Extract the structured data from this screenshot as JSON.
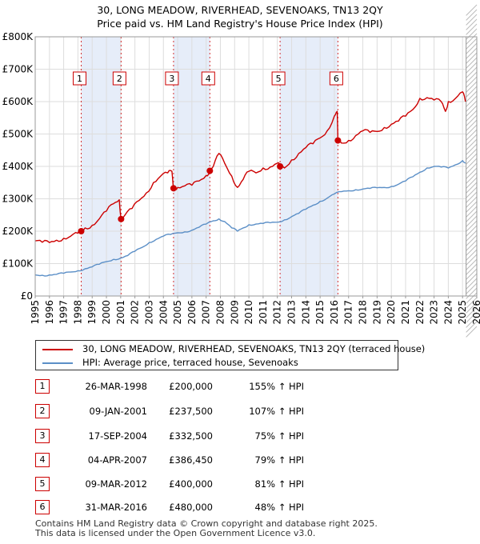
{
  "title_line1": "30, LONG MEADOW, RIVERHEAD, SEVENOAKS, TN13 2QY",
  "title_line2": "Price paid vs. HM Land Registry's House Price Index (HPI)",
  "colors": {
    "property": "#cc0000",
    "hpi": "#5b8fc7",
    "band": "#e6edf9",
    "marker_border": "#cc0000"
  },
  "legend": {
    "property_label": "30, LONG MEADOW, RIVERHEAD, SEVENOAKS, TN13 2QY (terraced house)",
    "hpi_label": "HPI: Average price, terraced house, Sevenoaks"
  },
  "sales": [
    {
      "num": "1",
      "date": "26-MAR-1998",
      "price": "£200,000",
      "hpi": "155% ↑ HPI"
    },
    {
      "num": "2",
      "date": "09-JAN-2001",
      "price": "£237,500",
      "hpi": "107% ↑ HPI"
    },
    {
      "num": "3",
      "date": "17-SEP-2004",
      "price": "£332,500",
      "hpi": "75% ↑ HPI"
    },
    {
      "num": "4",
      "date": "04-APR-2007",
      "price": "£386,450",
      "hpi": "79% ↑ HPI"
    },
    {
      "num": "5",
      "date": "09-MAR-2012",
      "price": "£400,000",
      "hpi": "81% ↑ HPI"
    },
    {
      "num": "6",
      "date": "31-MAR-2016",
      "price": "£480,000",
      "hpi": "48% ↑ HPI"
    }
  ],
  "footer_line1": "Contains HM Land Registry data © Crown copyright and database right 2025.",
  "footer_line2": "This data is licensed under the Open Government Licence v3.0.",
  "chart_data": {
    "type": "line",
    "title": "30, LONG MEADOW, RIVERHEAD, SEVENOAKS, TN13 2QY — Price paid vs. HM Land Registry's House Price Index (HPI)",
    "xlabel": "",
    "ylabel": "",
    "xlim": [
      1995,
      2026
    ],
    "ylim": [
      0,
      800000
    ],
    "x_ticks": [
      1995,
      1996,
      1997,
      1998,
      1999,
      2000,
      2001,
      2002,
      2003,
      2004,
      2005,
      2006,
      2007,
      2008,
      2009,
      2010,
      2011,
      2012,
      2013,
      2014,
      2015,
      2016,
      2017,
      2018,
      2019,
      2020,
      2021,
      2022,
      2023,
      2024,
      2025,
      2026
    ],
    "y_ticks": [
      0,
      100000,
      200000,
      300000,
      400000,
      500000,
      600000,
      700000,
      800000
    ],
    "y_tick_labels": [
      "£0",
      "£100K",
      "£200K",
      "£300K",
      "£400K",
      "£500K",
      "£600K",
      "£700K",
      "£800K"
    ],
    "grid": true,
    "sale_bands": [
      [
        1998.23,
        2001.03
      ],
      [
        2004.71,
        2007.26
      ],
      [
        2012.19,
        2016.25
      ]
    ],
    "sale_points": [
      {
        "label": "1",
        "x": 1998.23,
        "y": 200000
      },
      {
        "label": "2",
        "x": 2001.03,
        "y": 237500
      },
      {
        "label": "3",
        "x": 2004.71,
        "y": 332500
      },
      {
        "label": "4",
        "x": 2007.26,
        "y": 386450
      },
      {
        "label": "5",
        "x": 2012.19,
        "y": 400000
      },
      {
        "label": "6",
        "x": 2016.25,
        "y": 480000
      }
    ],
    "series": [
      {
        "name": "30, LONG MEADOW, RIVERHEAD, SEVENOAKS, TN13 2QY (terraced house)",
        "x": [
          1995.0,
          1995.5,
          1996.0,
          1996.5,
          1997.0,
          1997.5,
          1998.0,
          1998.23,
          1998.5,
          1999.0,
          1999.5,
          2000.0,
          2000.5,
          2000.9,
          2001.03,
          2001.3,
          2001.8,
          2002.3,
          2002.8,
          2003.3,
          2003.8,
          2004.3,
          2004.6,
          2004.71,
          2005.0,
          2005.5,
          2006.0,
          2006.5,
          2007.0,
          2007.26,
          2007.5,
          2007.9,
          2008.3,
          2008.8,
          2009.2,
          2009.6,
          2010.0,
          2010.5,
          2011.0,
          2011.5,
          2012.0,
          2012.19,
          2012.5,
          2013.0,
          2013.5,
          2014.0,
          2014.5,
          2015.0,
          2015.5,
          2016.0,
          2016.2,
          2016.25,
          2016.5,
          2017.0,
          2017.5,
          2018.0,
          2018.5,
          2019.0,
          2019.5,
          2020.0,
          2020.5,
          2021.0,
          2021.5,
          2022.0,
          2022.5,
          2023.0,
          2023.5,
          2023.8,
          2024.0,
          2024.5,
          2025.0,
          2025.2
        ],
        "values": [
          170000,
          166000,
          165000,
          172000,
          178000,
          185000,
          194000,
          200000,
          210000,
          218000,
          238000,
          262000,
          285000,
          297000,
          237500,
          250000,
          270000,
          295000,
          318000,
          350000,
          370000,
          380000,
          385000,
          332500,
          335000,
          340000,
          342000,
          355000,
          372000,
          386450,
          400000,
          440000,
          410000,
          370000,
          335000,
          360000,
          385000,
          380000,
          395000,
          398000,
          410000,
          400000,
          395000,
          420000,
          440000,
          458000,
          470000,
          488000,
          510000,
          555000,
          570000,
          480000,
          472000,
          480000,
          495000,
          510000,
          505000,
          508000,
          520000,
          530000,
          540000,
          555000,
          575000,
          610000,
          612000,
          605000,
          600000,
          570000,
          600000,
          610000,
          630000,
          600000
        ]
      },
      {
        "name": "HPI: Average price, terraced house, Sevenoaks",
        "x": [
          1995.0,
          1995.5,
          1996.0,
          1996.5,
          1997.0,
          1997.5,
          1998.0,
          1998.5,
          1999.0,
          1999.5,
          2000.0,
          2000.5,
          2001.0,
          2001.5,
          2002.0,
          2002.5,
          2003.0,
          2003.5,
          2004.0,
          2004.5,
          2005.0,
          2005.5,
          2006.0,
          2006.5,
          2007.0,
          2007.5,
          2007.9,
          2008.3,
          2008.8,
          2009.2,
          2009.6,
          2010.0,
          2010.5,
          2011.0,
          2011.5,
          2012.0,
          2012.5,
          2013.0,
          2013.5,
          2014.0,
          2014.5,
          2015.0,
          2015.5,
          2016.0,
          2016.5,
          2017.0,
          2017.5,
          2018.0,
          2018.5,
          2019.0,
          2019.5,
          2020.0,
          2020.5,
          2021.0,
          2021.5,
          2022.0,
          2022.5,
          2023.0,
          2023.5,
          2024.0,
          2024.5,
          2025.0,
          2025.2
        ],
        "values": [
          65000,
          64000,
          65000,
          67000,
          70000,
          74000,
          78000,
          84000,
          90000,
          98000,
          106000,
          113000,
          117000,
          125000,
          138000,
          150000,
          165000,
          175000,
          185000,
          190000,
          195000,
          198000,
          203000,
          212000,
          222000,
          232000,
          238000,
          230000,
          210000,
          200000,
          210000,
          220000,
          222000,
          224000,
          226000,
          228000,
          235000,
          245000,
          255000,
          268000,
          280000,
          292000,
          302000,
          315000,
          322000,
          325000,
          328000,
          330000,
          332000,
          334000,
          335000,
          338000,
          345000,
          355000,
          368000,
          382000,
          395000,
          400000,
          398000,
          395000,
          405000,
          418000,
          410000
        ]
      }
    ]
  }
}
